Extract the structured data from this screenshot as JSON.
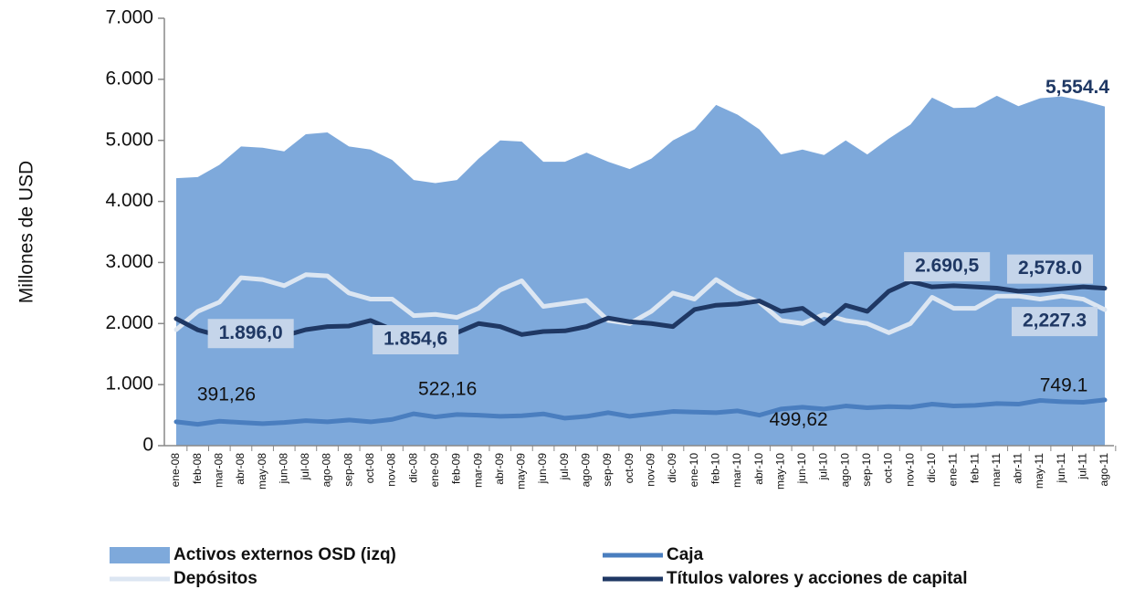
{
  "chart_data": {
    "type": "area-line",
    "y_label": "Millones de USD",
    "categories": [
      "ene-08",
      "feb-08",
      "mar-08",
      "abr-08",
      "may-08",
      "jun-08",
      "jul-08",
      "ago-08",
      "sep-08",
      "oct-08",
      "nov-08",
      "dic-08",
      "ene-09",
      "feb-09",
      "mar-09",
      "abr-09",
      "may-09",
      "jun-09",
      "jul-09",
      "ago-09",
      "sep-09",
      "oct-09",
      "nov-09",
      "dic-09",
      "ene-10",
      "feb-10",
      "mar-10",
      "abr-10",
      "may-10",
      "jun-10",
      "jul-10",
      "ago-10",
      "sep-10",
      "oct-10",
      "nov-10",
      "dic-10",
      "ene-11",
      "feb-11",
      "mar-11",
      "abr-11",
      "may-11",
      "jun-11",
      "jul-11",
      "ago-11"
    ],
    "series": [
      {
        "name": "Activos externos OSD (izq)",
        "kind": "area",
        "color": "#7ea9db",
        "values": [
          4380,
          4400,
          4600,
          4900,
          4880,
          4820,
          5100,
          5130,
          4900,
          4850,
          4680,
          4350,
          4300,
          4350,
          4700,
          5000,
          4980,
          4650,
          4650,
          4800,
          4650,
          4530,
          4700,
          5000,
          5180,
          5580,
          5420,
          5180,
          4770,
          4850,
          4760,
          5000,
          4770,
          5030,
          5260,
          5700,
          5530,
          5540,
          5730,
          5560,
          5690,
          5720,
          5650,
          5554.4
        ],
        "value_labels": [
          null,
          null,
          null,
          null,
          null,
          null,
          null,
          null,
          null,
          null,
          null,
          null,
          null,
          null,
          null,
          null,
          null,
          null,
          null,
          null,
          null,
          null,
          null,
          null,
          null,
          null,
          null,
          null,
          null,
          null,
          null,
          null,
          null,
          null,
          null,
          null,
          null,
          null,
          null,
          null,
          null,
          null,
          null,
          "5,554.4"
        ]
      },
      {
        "name": "Caja",
        "kind": "line",
        "color": "#4a7ebf",
        "values": [
          391.26,
          350,
          400,
          380,
          360,
          380,
          410,
          390,
          420,
          390,
          430,
          522.16,
          470,
          510,
          500,
          480,
          490,
          520,
          450,
          480,
          540,
          480,
          520,
          560,
          550,
          540,
          570,
          499.62,
          600,
          630,
          600,
          650,
          620,
          640,
          630,
          680,
          650,
          660,
          690,
          680,
          740,
          720,
          710,
          749.1
        ],
        "value_labels": [
          "391,26",
          null,
          null,
          null,
          null,
          null,
          null,
          null,
          null,
          null,
          null,
          "522,16",
          null,
          null,
          null,
          null,
          null,
          null,
          null,
          null,
          null,
          null,
          null,
          null,
          null,
          null,
          null,
          "499,62",
          null,
          null,
          null,
          null,
          null,
          null,
          null,
          null,
          null,
          null,
          null,
          null,
          null,
          null,
          null,
          "749.1"
        ]
      },
      {
        "name": "Depósitos",
        "kind": "line",
        "color": "#dce6f2",
        "values": [
          1900,
          2200,
          2350,
          2750,
          2720,
          2620,
          2800,
          2780,
          2500,
          2400,
          2400,
          2130,
          2150,
          2100,
          2250,
          2550,
          2700,
          2280,
          2330,
          2380,
          2050,
          2000,
          2200,
          2500,
          2400,
          2720,
          2500,
          2350,
          2050,
          2000,
          2150,
          2050,
          2000,
          1850,
          2000,
          2430,
          2250,
          2250,
          2450,
          2450,
          2400,
          2450,
          2400,
          2227.3
        ],
        "value_labels": [
          null,
          null,
          null,
          null,
          null,
          null,
          null,
          null,
          null,
          null,
          null,
          null,
          null,
          null,
          null,
          null,
          null,
          null,
          null,
          null,
          null,
          null,
          null,
          null,
          null,
          null,
          null,
          null,
          null,
          null,
          null,
          null,
          null,
          null,
          null,
          null,
          null,
          null,
          null,
          null,
          null,
          null,
          null,
          "2,227.3"
        ]
      },
      {
        "name": "Títulos valores y acciones de capital",
        "kind": "line",
        "color": "#1f3864",
        "values": [
          2080,
          1896.0,
          1800,
          1750,
          1780,
          1800,
          1900,
          1950,
          1960,
          2050,
          1900,
          1854.6,
          1800,
          1850,
          2000,
          1950,
          1820,
          1870,
          1880,
          1950,
          2090,
          2030,
          2000,
          1950,
          2230,
          2300,
          2320,
          2370,
          2200,
          2250,
          2000,
          2300,
          2200,
          2530,
          2690.5,
          2600,
          2620,
          2600,
          2580,
          2530,
          2540,
          2570,
          2600,
          2578.0
        ],
        "value_labels": [
          null,
          "1.896,0",
          null,
          null,
          null,
          null,
          null,
          null,
          null,
          null,
          null,
          "1.854,6",
          null,
          null,
          null,
          null,
          null,
          null,
          null,
          null,
          null,
          null,
          null,
          null,
          null,
          null,
          null,
          null,
          null,
          null,
          null,
          null,
          null,
          null,
          "2.690,5",
          null,
          null,
          null,
          null,
          null,
          null,
          null,
          null,
          "2,578.0"
        ]
      }
    ],
    "ylim": [
      0,
      7000
    ],
    "yticks": [
      0,
      {
        "value": 1000,
        "label": "1.000"
      },
      {
        "value": 2000,
        "label": "2.000"
      },
      {
        "value": 3000,
        "label": "3.000"
      },
      {
        "value": 4000,
        "label": "4.000"
      },
      {
        "value": 5000,
        "label": "5.000"
      },
      {
        "value": 6000,
        "label": "6.000"
      },
      {
        "value": 7000,
        "label": "7.000"
      }
    ],
    "grid": false
  }
}
